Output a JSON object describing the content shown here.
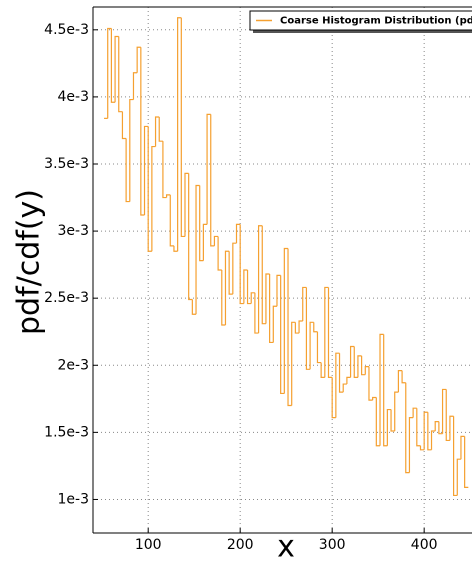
{
  "chart_data": {
    "type": "histogram_step",
    "xlabel": "x",
    "ylabel": "pdf/cdf(y)",
    "legend": "upper right",
    "grid": true,
    "series": [
      {
        "name": "Coarse Histogram Distribution (pdf)",
        "color": "#f5a030",
        "bins": [
          52,
          56,
          60,
          64,
          68,
          72,
          76,
          80,
          84,
          88,
          92,
          96,
          100,
          104,
          108,
          112,
          116,
          120,
          124,
          128,
          132,
          136,
          140,
          144,
          148,
          152,
          156,
          160,
          164,
          168,
          172,
          176,
          180,
          184,
          188,
          192,
          196,
          200,
          204,
          208,
          212,
          216,
          220,
          224,
          228,
          232,
          236,
          240,
          244,
          248,
          252,
          256,
          260,
          264,
          268,
          272,
          276,
          280,
          284,
          288,
          292,
          296,
          300,
          304,
          308,
          312,
          316,
          320,
          324,
          328,
          332,
          336,
          340,
          344,
          348,
          352,
          356,
          360,
          364,
          368,
          372,
          376,
          380,
          384,
          388,
          392,
          396,
          400,
          404,
          408,
          412,
          416,
          420,
          424,
          428,
          432,
          436,
          440,
          444,
          448
        ],
        "values": [
          0.00384,
          0.00451,
          0.00396,
          0.00445,
          0.00389,
          0.00369,
          0.00322,
          0.00398,
          0.00418,
          0.00437,
          0.00312,
          0.00378,
          0.00285,
          0.00363,
          0.00385,
          0.00367,
          0.00325,
          0.00327,
          0.00289,
          0.00285,
          0.00459,
          0.00296,
          0.00343,
          0.00249,
          0.00238,
          0.00334,
          0.00278,
          0.00305,
          0.00387,
          0.00289,
          0.00296,
          0.00271,
          0.0023,
          0.00285,
          0.00253,
          0.00291,
          0.00305,
          0.00246,
          0.00271,
          0.00246,
          0.00254,
          0.00224,
          0.00304,
          0.00231,
          0.00268,
          0.00217,
          0.00244,
          0.00267,
          0.00179,
          0.00287,
          0.0017,
          0.00232,
          0.00224,
          0.00233,
          0.00258,
          0.00197,
          0.00232,
          0.00225,
          0.00202,
          0.00191,
          0.00258,
          0.00191,
          0.00161,
          0.00209,
          0.0018,
          0.00186,
          0.00191,
          0.00214,
          0.00191,
          0.00207,
          0.00193,
          0.00199,
          0.00174,
          0.00176,
          0.0014,
          0.00223,
          0.0014,
          0.00167,
          0.00151,
          0.0018,
          0.00196,
          0.00187,
          0.0012,
          0.00161,
          0.00168,
          0.0014,
          0.00137,
          0.00165,
          0.00137,
          0.00151,
          0.00158,
          0.00149,
          0.00182,
          0.00144,
          0.00162,
          0.00103,
          0.0013,
          0.00147,
          0.00109
        ]
      }
    ],
    "xlim": [
      40,
      452
    ],
    "ylim": [
      0.00075,
      0.00467
    ],
    "xticks": [
      100,
      200,
      300,
      400
    ],
    "yticks": [
      {
        "value": 0.001,
        "label": "1e-3"
      },
      {
        "value": 0.0015,
        "label": "1.5e-3"
      },
      {
        "value": 0.002,
        "label": "2e-3"
      },
      {
        "value": 0.0025,
        "label": "2.5e-3"
      },
      {
        "value": 0.003,
        "label": "3e-3"
      },
      {
        "value": 0.0035,
        "label": "3.5e-3"
      },
      {
        "value": 0.004,
        "label": "4e-3"
      },
      {
        "value": 0.0045,
        "label": "4.5e-3"
      }
    ]
  }
}
